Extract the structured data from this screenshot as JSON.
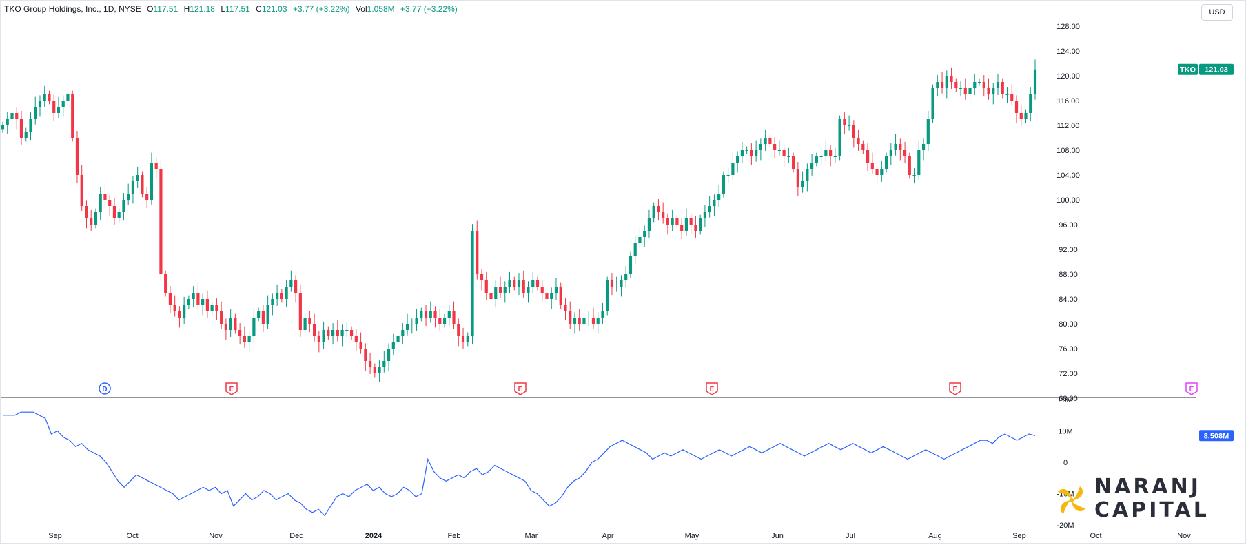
{
  "legend": {
    "title": "TKO Group Holdings, Inc., 1D, NYSE",
    "o_label": "O",
    "o_value": "117.51",
    "h_label": "H",
    "h_value": "121.18",
    "l_label": "L",
    "l_value": "117.51",
    "c_label": "C",
    "c_value": "121.03",
    "change": "+3.77 (+3.22%)",
    "vol_label": "Vol",
    "vol_value": "1.058M",
    "vol_change": "+3.77 (+3.22%)"
  },
  "currency": "USD",
  "logo": {
    "line1": "NARANJ",
    "line2": "CAPITAL"
  },
  "colors": {
    "up": "#089981",
    "down": "#f23645",
    "indicator": "#2962ff",
    "earnings": "#f23645",
    "dividend": "#2962ff",
    "upcoming": "#e040fb"
  },
  "chart_data": {
    "type": "candlestick",
    "symbol": "TKO",
    "last_price": 121.03,
    "last_price_label": "121.03",
    "price_axis": {
      "ylim": [
        68,
        130
      ],
      "ticks": [
        "128.00",
        "124.00",
        "120.00",
        "116.00",
        "112.00",
        "108.00",
        "104.00",
        "100.00",
        "96.00",
        "92.00",
        "88.00",
        "84.00",
        "80.00",
        "76.00",
        "72.00",
        "68.00"
      ]
    },
    "x_tick_labels": [
      "Sep",
      "Oct",
      "Nov",
      "Dec",
      "2024",
      "Feb",
      "Mar",
      "Apr",
      "May",
      "Jun",
      "Jul",
      "Aug",
      "Sep",
      "Oct",
      "Nov"
    ],
    "closes": [
      112,
      113,
      114,
      113,
      110,
      111,
      113,
      115,
      116,
      117,
      116,
      114,
      115,
      116,
      117,
      110,
      104,
      99,
      97,
      96,
      98,
      101,
      100,
      99,
      97,
      98,
      100,
      101,
      103,
      104,
      101,
      100,
      106,
      105,
      88,
      85,
      83,
      82,
      81,
      83,
      84,
      85,
      83,
      84,
      82,
      83,
      82,
      80,
      79,
      81,
      79,
      78,
      77,
      78,
      81,
      82,
      80,
      83,
      84,
      85,
      84,
      86,
      87,
      85,
      79,
      81,
      80,
      78,
      77,
      79,
      78,
      79,
      78,
      79,
      79,
      78,
      77,
      76,
      74,
      73,
      72,
      73,
      74,
      76,
      77,
      78,
      79,
      80,
      80,
      81,
      82,
      81,
      82,
      81,
      80,
      81,
      82,
      80,
      78,
      77,
      78,
      95,
      88,
      87,
      85,
      84,
      86,
      85,
      86,
      87,
      86,
      87,
      85,
      86,
      87,
      86,
      85,
      84,
      85,
      86,
      83,
      82,
      80,
      81,
      80,
      81,
      81,
      80,
      81,
      82,
      87,
      86,
      86,
      87,
      88,
      91,
      93,
      94,
      95,
      97,
      99,
      98,
      97,
      96,
      97,
      96,
      95,
      97,
      96,
      95,
      97,
      98,
      99,
      100,
      101,
      104,
      104,
      106,
      107,
      108,
      108,
      107,
      108,
      109,
      110,
      109,
      108,
      108,
      107,
      107,
      105,
      102,
      103,
      105,
      106,
      107,
      107,
      108,
      107,
      107,
      113,
      112,
      112,
      110,
      109,
      108,
      106,
      105,
      104,
      105,
      107,
      108,
      109,
      108,
      107,
      104,
      104,
      108,
      109,
      113,
      118,
      119,
      118,
      120,
      119,
      118,
      118,
      117,
      118,
      119,
      119,
      118,
      117,
      118,
      119,
      117,
      117,
      116,
      114,
      113,
      114,
      117,
      121.03
    ],
    "indicator": {
      "axis_ticks": [
        "20M",
        "10M",
        "0",
        "-10M",
        "-20M"
      ],
      "ylim": [
        -20,
        20
      ],
      "unit": "M",
      "last_label": "8.508M",
      "values": [
        15,
        15,
        15,
        16,
        16,
        16,
        15,
        14,
        9,
        10,
        8,
        7,
        5,
        6,
        4,
        3,
        2,
        0,
        -3,
        -6,
        -8,
        -6,
        -4,
        -5,
        -6,
        -7,
        -8,
        -9,
        -10,
        -12,
        -11,
        -10,
        -9,
        -8,
        -9,
        -8,
        -10,
        -9,
        -14,
        -12,
        -10,
        -12,
        -11,
        -9,
        -10,
        -12,
        -11,
        -10,
        -12,
        -13,
        -15,
        -16,
        -15,
        -17,
        -14,
        -11,
        -10,
        -11,
        -9,
        -8,
        -7,
        -9,
        -8,
        -10,
        -11,
        -10,
        -8,
        -9,
        -11,
        -10,
        1,
        -3,
        -5,
        -6,
        -5,
        -4,
        -5,
        -3,
        -2,
        -4,
        -3,
        -1,
        -2,
        -3,
        -4,
        -5,
        -6,
        -9,
        -10,
        -12,
        -14,
        -13,
        -11,
        -8,
        -6,
        -5,
        -3,
        0,
        1,
        3,
        5,
        6,
        7,
        6,
        5,
        4,
        3,
        1,
        2,
        3,
        2,
        3,
        4,
        3,
        2,
        1,
        2,
        3,
        4,
        3,
        2,
        3,
        4,
        5,
        4,
        3,
        4,
        5,
        6,
        5,
        4,
        3,
        2,
        3,
        4,
        5,
        6,
        5,
        4,
        5,
        6,
        5,
        4,
        3,
        4,
        5,
        4,
        3,
        2,
        1,
        2,
        3,
        4,
        3,
        2,
        1,
        2,
        3,
        4,
        5,
        6,
        7,
        7,
        6,
        8,
        9,
        8,
        7,
        8,
        9,
        8.508
      ],
      "indicator_dates_unlabeled": true
    },
    "events": [
      {
        "code": "D",
        "kind": "dividend"
      },
      {
        "code": "E",
        "kind": "earnings"
      },
      {
        "code": "E",
        "kind": "earnings"
      },
      {
        "code": "E",
        "kind": "earnings"
      },
      {
        "code": "E",
        "kind": "earnings"
      },
      {
        "code": "E",
        "kind": "upcoming-earnings"
      }
    ]
  }
}
